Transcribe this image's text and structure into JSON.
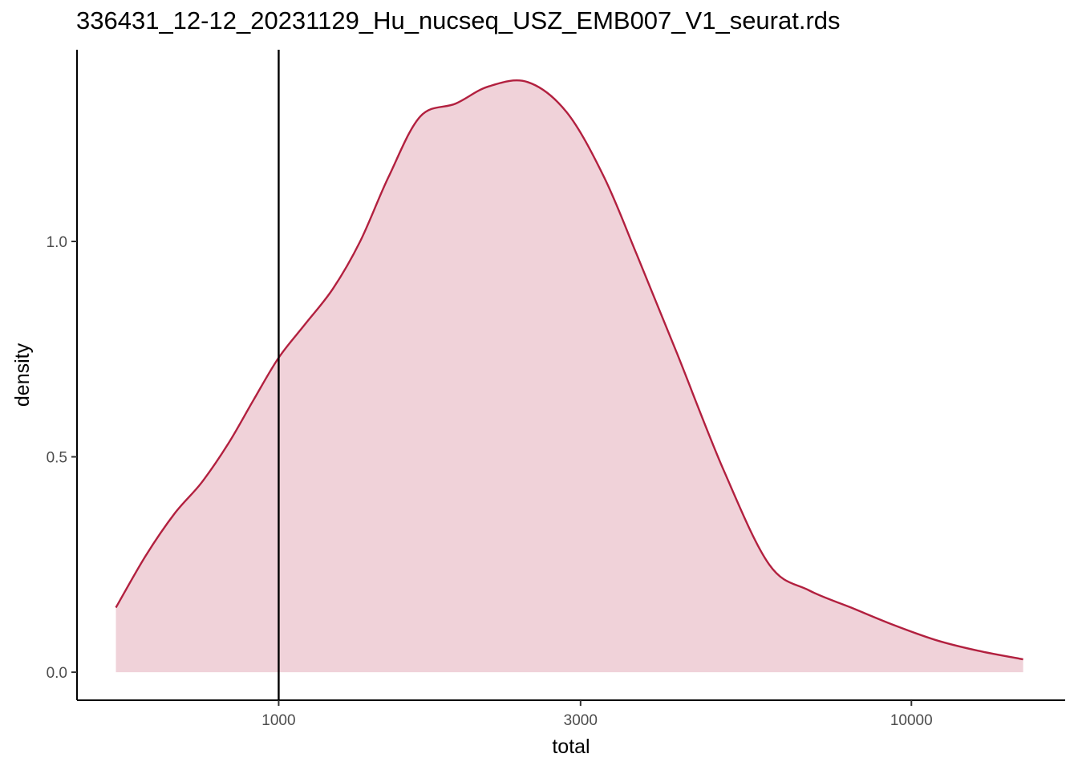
{
  "chart_data": {
    "type": "area",
    "title": "336431_12-12_20231129_Hu_nucseq_USZ_EMB007_V1_seurat.rds",
    "xlabel": "total",
    "ylabel": "density",
    "x_scale": "log10",
    "xlim": [
      480,
      17500
    ],
    "ylim": [
      -0.065,
      1.445
    ],
    "x_ticks": [
      {
        "value": 1000,
        "label": "1000"
      },
      {
        "value": 3000,
        "label": "3000"
      },
      {
        "value": 10000,
        "label": "10000"
      }
    ],
    "y_ticks": [
      {
        "value": 0.0,
        "label": "0.0"
      },
      {
        "value": 0.5,
        "label": "0.5"
      },
      {
        "value": 1.0,
        "label": "1.0"
      }
    ],
    "vline": 1000,
    "grid": false,
    "legend": "none",
    "fill_color": "#f0d2d9",
    "line_color": "#b2203f",
    "vline_color": "#000000",
    "series": [
      {
        "x": [
          553,
          616,
          686,
          755,
          832,
          911,
          1000,
          1104,
          1218,
          1345,
          1492,
          1674,
          1905,
          2148,
          2474,
          2852,
          3266,
          3680,
          4262,
          5047,
          5960,
          6889,
          8032,
          9359,
          10910,
          12731,
          15017
        ],
        "y": [
          0.15,
          0.27,
          0.37,
          0.44,
          0.53,
          0.63,
          0.73,
          0.81,
          0.89,
          1.0,
          1.15,
          1.29,
          1.32,
          1.36,
          1.37,
          1.3,
          1.15,
          0.97,
          0.74,
          0.47,
          0.25,
          0.19,
          0.15,
          0.11,
          0.075,
          0.05,
          0.03
        ]
      }
    ]
  }
}
